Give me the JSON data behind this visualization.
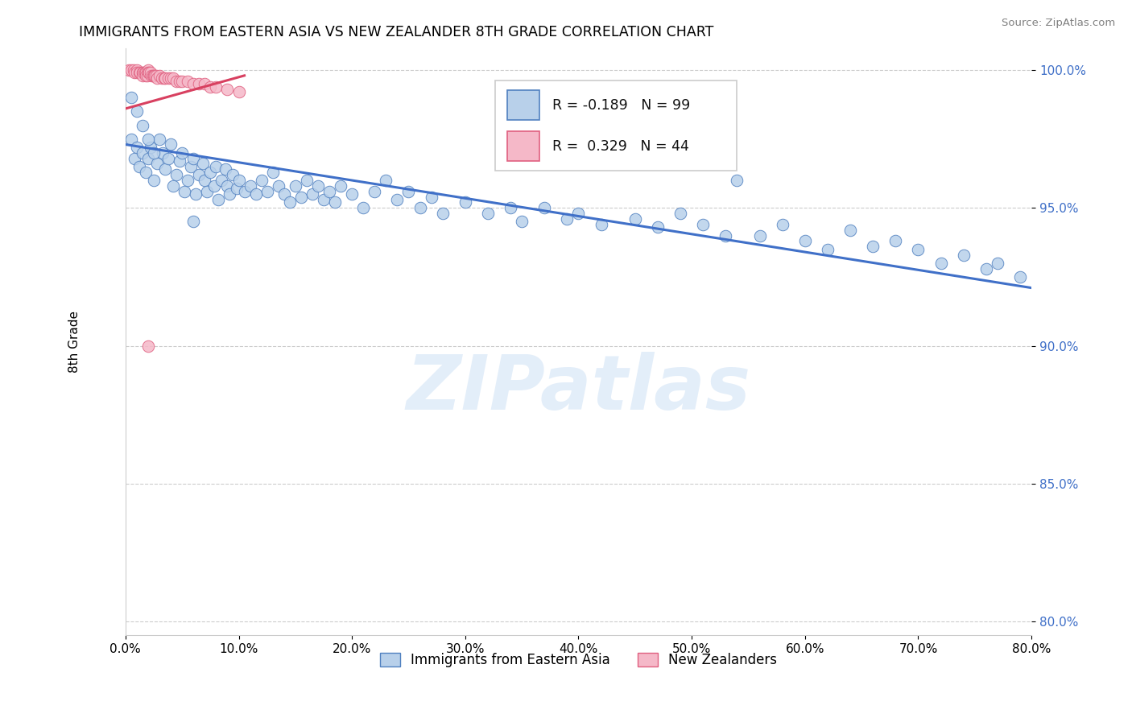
{
  "title": "IMMIGRANTS FROM EASTERN ASIA VS NEW ZEALANDER 8TH GRADE CORRELATION CHART",
  "source": "Source: ZipAtlas.com",
  "ylabel": "8th Grade",
  "xmin": 0.0,
  "xmax": 0.8,
  "ymin": 0.795,
  "ymax": 1.008,
  "xticks": [
    0.0,
    0.1,
    0.2,
    0.3,
    0.4,
    0.5,
    0.6,
    0.7,
    0.8
  ],
  "yticks": [
    0.8,
    0.85,
    0.9,
    0.95,
    1.0
  ],
  "legend_r_blue": "-0.189",
  "legend_n_blue": "99",
  "legend_r_pink": "0.329",
  "legend_n_pink": "44",
  "blue_color": "#b8d0ea",
  "pink_color": "#f5b8c8",
  "blue_edge_color": "#5080c0",
  "pink_edge_color": "#e06080",
  "blue_line_color": "#4070c8",
  "pink_line_color": "#d84060",
  "watermark": "ZIPatlas",
  "legend_label_blue": "Immigrants from Eastern Asia",
  "legend_label_pink": "New Zealanders",
  "blue_scatter_x": [
    0.005,
    0.008,
    0.01,
    0.012,
    0.015,
    0.018,
    0.02,
    0.022,
    0.025,
    0.028,
    0.03,
    0.033,
    0.035,
    0.038,
    0.04,
    0.042,
    0.045,
    0.048,
    0.05,
    0.052,
    0.055,
    0.058,
    0.06,
    0.062,
    0.065,
    0.068,
    0.07,
    0.072,
    0.075,
    0.078,
    0.08,
    0.082,
    0.085,
    0.088,
    0.09,
    0.092,
    0.095,
    0.098,
    0.1,
    0.105,
    0.11,
    0.115,
    0.12,
    0.125,
    0.13,
    0.135,
    0.14,
    0.145,
    0.15,
    0.155,
    0.16,
    0.165,
    0.17,
    0.175,
    0.18,
    0.185,
    0.19,
    0.2,
    0.21,
    0.22,
    0.23,
    0.24,
    0.25,
    0.26,
    0.27,
    0.28,
    0.3,
    0.32,
    0.34,
    0.35,
    0.37,
    0.39,
    0.4,
    0.42,
    0.45,
    0.47,
    0.49,
    0.51,
    0.53,
    0.54,
    0.56,
    0.58,
    0.6,
    0.62,
    0.64,
    0.66,
    0.68,
    0.7,
    0.72,
    0.74,
    0.76,
    0.77,
    0.79,
    0.005,
    0.01,
    0.015,
    0.02,
    0.025,
    0.06
  ],
  "blue_scatter_y": [
    0.975,
    0.968,
    0.972,
    0.965,
    0.97,
    0.963,
    0.968,
    0.972,
    0.96,
    0.966,
    0.975,
    0.97,
    0.964,
    0.968,
    0.973,
    0.958,
    0.962,
    0.967,
    0.97,
    0.956,
    0.96,
    0.965,
    0.968,
    0.955,
    0.962,
    0.966,
    0.96,
    0.956,
    0.963,
    0.958,
    0.965,
    0.953,
    0.96,
    0.964,
    0.958,
    0.955,
    0.962,
    0.957,
    0.96,
    0.956,
    0.958,
    0.955,
    0.96,
    0.956,
    0.963,
    0.958,
    0.955,
    0.952,
    0.958,
    0.954,
    0.96,
    0.955,
    0.958,
    0.953,
    0.956,
    0.952,
    0.958,
    0.955,
    0.95,
    0.956,
    0.96,
    0.953,
    0.956,
    0.95,
    0.954,
    0.948,
    0.952,
    0.948,
    0.95,
    0.945,
    0.95,
    0.946,
    0.948,
    0.944,
    0.946,
    0.943,
    0.948,
    0.944,
    0.94,
    0.96,
    0.94,
    0.944,
    0.938,
    0.935,
    0.942,
    0.936,
    0.938,
    0.935,
    0.93,
    0.933,
    0.928,
    0.93,
    0.925,
    0.99,
    0.985,
    0.98,
    0.975,
    0.97,
    0.945
  ],
  "pink_scatter_x": [
    0.003,
    0.005,
    0.007,
    0.008,
    0.01,
    0.01,
    0.012,
    0.013,
    0.015,
    0.015,
    0.016,
    0.017,
    0.018,
    0.018,
    0.019,
    0.02,
    0.02,
    0.021,
    0.022,
    0.023,
    0.024,
    0.025,
    0.026,
    0.027,
    0.028,
    0.03,
    0.032,
    0.034,
    0.035,
    0.038,
    0.04,
    0.042,
    0.045,
    0.048,
    0.05,
    0.055,
    0.06,
    0.065,
    0.07,
    0.075,
    0.08,
    0.09,
    0.1,
    0.02
  ],
  "pink_scatter_y": [
    1.0,
    1.0,
    1.0,
    0.999,
    1.0,
    0.999,
    0.999,
    0.999,
    0.999,
    0.998,
    0.999,
    0.999,
    0.999,
    0.998,
    0.998,
    1.0,
    0.999,
    0.999,
    0.999,
    0.998,
    0.998,
    0.998,
    0.998,
    0.998,
    0.997,
    0.998,
    0.997,
    0.997,
    0.997,
    0.997,
    0.997,
    0.997,
    0.996,
    0.996,
    0.996,
    0.996,
    0.995,
    0.995,
    0.995,
    0.994,
    0.994,
    0.993,
    0.992,
    0.9
  ],
  "blue_trendline_x": [
    0.0,
    0.8
  ],
  "blue_trendline_y": [
    0.973,
    0.921
  ],
  "pink_trendline_x": [
    0.0,
    0.105
  ],
  "pink_trendline_y": [
    0.986,
    0.998
  ]
}
